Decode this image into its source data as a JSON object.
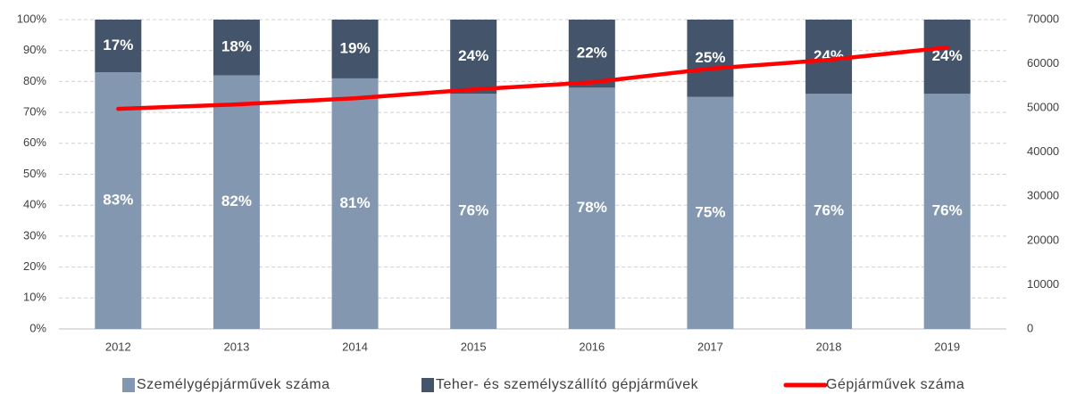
{
  "chart_data": {
    "type": "bar",
    "stacked": true,
    "categories": [
      "2012",
      "2013",
      "2014",
      "2015",
      "2016",
      "2017",
      "2018",
      "2019"
    ],
    "series": [
      {
        "name": "Személygépjárművek száma",
        "color": "#8497b0",
        "values": [
          83,
          82,
          81,
          76,
          78,
          75,
          76,
          76
        ],
        "value_labels": [
          "83%",
          "82%",
          "81%",
          "76%",
          "78%",
          "75%",
          "76%",
          "76%"
        ]
      },
      {
        "name": "Teher- és személyszállító gépjárművek",
        "color": "#44546a",
        "values": [
          17,
          18,
          19,
          24,
          22,
          25,
          24,
          24
        ],
        "value_labels": [
          "17%",
          "18%",
          "19%",
          "24%",
          "22%",
          "25%",
          "24%",
          "24%"
        ]
      },
      {
        "name": "Gépjárművek száma",
        "color": "#ff0000",
        "type": "line",
        "axis": "y2",
        "values": [
          49800,
          50800,
          52200,
          54200,
          55800,
          58900,
          60900,
          63700
        ]
      }
    ],
    "ylim": [
      0,
      100
    ],
    "yticks": [
      {
        "value": 0,
        "label": "0%"
      },
      {
        "value": 10,
        "label": "10%"
      },
      {
        "value": 20,
        "label": "20%"
      },
      {
        "value": 30,
        "label": "30%"
      },
      {
        "value": 40,
        "label": "40%"
      },
      {
        "value": 50,
        "label": "50%"
      },
      {
        "value": 60,
        "label": "60%"
      },
      {
        "value": 70,
        "label": "70%"
      },
      {
        "value": 80,
        "label": "80%"
      },
      {
        "value": 90,
        "label": "90%"
      },
      {
        "value": 100,
        "label": "100%"
      }
    ],
    "y2lim": [
      0,
      70000
    ],
    "y2ticks": [
      0,
      10000,
      20000,
      30000,
      40000,
      50000,
      60000,
      70000
    ],
    "grid": true,
    "legend": "bottom"
  }
}
